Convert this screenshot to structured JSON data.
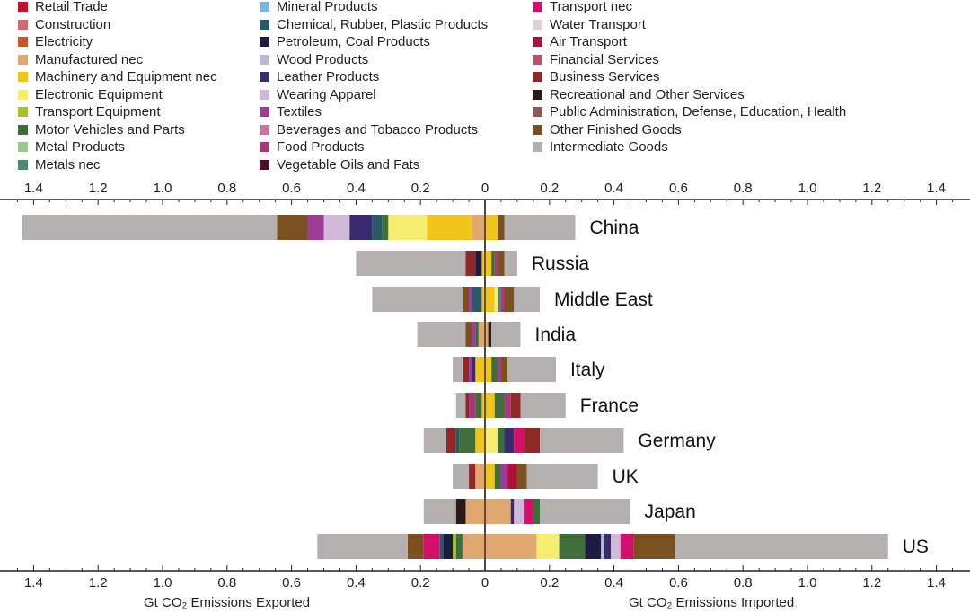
{
  "chart_data": {
    "type": "bar",
    "orientation": "horizontal-diverging-stacked",
    "xlabel_left": "Gt CO₂ Emissions Exported",
    "xlabel_right": "Gt CO₂ Emissions Imported",
    "xlim": [
      -1.45,
      1.5
    ],
    "ticks": [
      "1.4",
      "1.2",
      "1.0",
      "0.8",
      "0.6",
      "0.4",
      "0.2",
      "0",
      "0.2",
      "0.4",
      "0.6",
      "0.8",
      "1.0",
      "1.2",
      "1.4"
    ],
    "tick_values": [
      -1.4,
      -1.2,
      -1.0,
      -0.8,
      -0.6,
      -0.4,
      -0.2,
      0,
      0.2,
      0.4,
      0.6,
      0.8,
      1.0,
      1.2,
      1.4
    ],
    "legend": [
      {
        "key": "retail",
        "label": "Retail Trade",
        "color": "#c0102a"
      },
      {
        "key": "construction",
        "label": "Construction",
        "color": "#d06a70"
      },
      {
        "key": "electricity",
        "label": "Electricity",
        "color": "#c85a2a"
      },
      {
        "key": "manufactured",
        "label": "Manufactured nec",
        "color": "#e0a870"
      },
      {
        "key": "machinery",
        "label": "Machinery and Equipment nec",
        "color": "#f0c418"
      },
      {
        "key": "electronic",
        "label": "Electronic Equipment",
        "color": "#f6ec70"
      },
      {
        "key": "transport_eq",
        "label": "Transport Equipment",
        "color": "#a8c030"
      },
      {
        "key": "motor",
        "label": "Motor Vehicles and Parts",
        "color": "#3e6e3a"
      },
      {
        "key": "metal_products",
        "label": "Metal Products",
        "color": "#98c890"
      },
      {
        "key": "metals_nec",
        "label": "Metals nec",
        "color": "#4a8a70"
      },
      {
        "key": "mineral",
        "label": "Mineral Products",
        "color": "#78b8e0"
      },
      {
        "key": "chemical",
        "label": "Chemical, Rubber, Plastic Products",
        "color": "#2a5a68"
      },
      {
        "key": "petroleum",
        "label": "Petroleum, Coal Products",
        "color": "#1c1c40"
      },
      {
        "key": "wood",
        "label": "Wood Products",
        "color": "#b8b8d8"
      },
      {
        "key": "leather",
        "label": "Leather Products",
        "color": "#3a2a70"
      },
      {
        "key": "apparel",
        "label": "Wearing Apparel",
        "color": "#d0b8d8"
      },
      {
        "key": "textiles",
        "label": "Textiles",
        "color": "#a03a98"
      },
      {
        "key": "beverages",
        "label": "Beverages and Tobacco Products",
        "color": "#d070a0"
      },
      {
        "key": "food",
        "label": "Food Products",
        "color": "#a83878"
      },
      {
        "key": "vegoil",
        "label": "Vegetable Oils and Fats",
        "color": "#4a1028"
      },
      {
        "key": "transport_nec",
        "label": "Transport nec",
        "color": "#d0106a"
      },
      {
        "key": "water",
        "label": "Water Transport",
        "color": "#e0d0d8"
      },
      {
        "key": "air",
        "label": "Air Transport",
        "color": "#b01038"
      },
      {
        "key": "financial",
        "label": "Financial Services",
        "color": "#c05068"
      },
      {
        "key": "business",
        "label": "Business Services",
        "color": "#902828"
      },
      {
        "key": "recreational",
        "label": "Recreational and Other Services",
        "color": "#2a1a1a"
      },
      {
        "key": "public",
        "label": "Public Administration, Defense, Education, Health",
        "color": "#8a5a5a"
      },
      {
        "key": "other_finished",
        "label": "Other Finished Goods",
        "color": "#7a5020"
      },
      {
        "key": "intermediate",
        "label": "Intermediate Goods",
        "color": "#b4b0b0"
      }
    ],
    "countries": [
      {
        "name": "China",
        "exported": [
          [
            "manufactured",
            0.04
          ],
          [
            "machinery",
            0.14
          ],
          [
            "electronic",
            0.12
          ],
          [
            "motor",
            0.02
          ],
          [
            "chemical",
            0.03
          ],
          [
            "leather",
            0.07
          ],
          [
            "apparel",
            0.08
          ],
          [
            "textiles",
            0.05
          ],
          [
            "other_finished",
            0.095
          ],
          [
            "intermediate",
            0.79
          ]
        ],
        "imported": [
          [
            "machinery",
            0.04
          ],
          [
            "other_finished",
            0.02
          ],
          [
            "intermediate",
            0.22
          ]
        ]
      },
      {
        "name": "Russia",
        "exported": [
          [
            "machinery",
            0.01
          ],
          [
            "petroleum",
            0.02
          ],
          [
            "business",
            0.03
          ],
          [
            "intermediate",
            0.34
          ]
        ],
        "imported": [
          [
            "machinery",
            0.02
          ],
          [
            "motor",
            0.01
          ],
          [
            "food",
            0.01
          ],
          [
            "other_finished",
            0.02
          ],
          [
            "intermediate",
            0.04
          ]
        ]
      },
      {
        "name": "Middle East",
        "exported": [
          [
            "machinery",
            0.01
          ],
          [
            "chemical",
            0.03
          ],
          [
            "textiles",
            0.01
          ],
          [
            "other_finished",
            0.02
          ],
          [
            "intermediate",
            0.28
          ]
        ],
        "imported": [
          [
            "machinery",
            0.03
          ],
          [
            "electronic",
            0.01
          ],
          [
            "metals_nec",
            0.01
          ],
          [
            "food",
            0.01
          ],
          [
            "other_finished",
            0.03
          ],
          [
            "intermediate",
            0.08
          ]
        ]
      },
      {
        "name": "India",
        "exported": [
          [
            "manufactured",
            0.02
          ],
          [
            "motor",
            0.01
          ],
          [
            "textiles",
            0.01
          ],
          [
            "other_finished",
            0.02
          ],
          [
            "intermediate",
            0.15
          ]
        ],
        "imported": [
          [
            "manufactured",
            0.01
          ],
          [
            "recreational",
            0.01
          ],
          [
            "intermediate",
            0.09
          ]
        ]
      },
      {
        "name": "Italy",
        "exported": [
          [
            "machinery",
            0.03
          ],
          [
            "leather",
            0.01
          ],
          [
            "textiles",
            0.01
          ],
          [
            "business",
            0.02
          ],
          [
            "intermediate",
            0.03
          ]
        ],
        "imported": [
          [
            "machinery",
            0.02
          ],
          [
            "motor",
            0.02
          ],
          [
            "textiles",
            0.01
          ],
          [
            "other_finished",
            0.02
          ],
          [
            "intermediate",
            0.15
          ]
        ]
      },
      {
        "name": "France",
        "exported": [
          [
            "machinery",
            0.01
          ],
          [
            "motor",
            0.02
          ],
          [
            "food",
            0.02
          ],
          [
            "business",
            0.01
          ],
          [
            "intermediate",
            0.03
          ]
        ],
        "imported": [
          [
            "machinery",
            0.03
          ],
          [
            "motor",
            0.03
          ],
          [
            "food",
            0.02
          ],
          [
            "business",
            0.03
          ],
          [
            "intermediate",
            0.14
          ]
        ]
      },
      {
        "name": "Germany",
        "exported": [
          [
            "machinery",
            0.03
          ],
          [
            "motor",
            0.05
          ],
          [
            "chemical",
            0.01
          ],
          [
            "business",
            0.03
          ],
          [
            "intermediate",
            0.07
          ]
        ],
        "imported": [
          [
            "electronic",
            0.04
          ],
          [
            "motor",
            0.02
          ],
          [
            "leather",
            0.03
          ],
          [
            "transport_nec",
            0.03
          ],
          [
            "business",
            0.05
          ],
          [
            "intermediate",
            0.26
          ]
        ]
      },
      {
        "name": "UK",
        "exported": [
          [
            "manufactured",
            0.03
          ],
          [
            "business",
            0.02
          ],
          [
            "intermediate",
            0.05
          ]
        ],
        "imported": [
          [
            "machinery",
            0.03
          ],
          [
            "motor",
            0.02
          ],
          [
            "textiles",
            0.02
          ],
          [
            "air",
            0.03
          ],
          [
            "other_finished",
            0.03
          ],
          [
            "intermediate",
            0.22
          ]
        ]
      },
      {
        "name": "Japan",
        "exported": [
          [
            "manufactured",
            0.06
          ],
          [
            "recreational",
            0.03
          ],
          [
            "intermediate",
            0.1
          ]
        ],
        "imported": [
          [
            "manufactured",
            0.08
          ],
          [
            "leather",
            0.01
          ],
          [
            "apparel",
            0.03
          ],
          [
            "transport_nec",
            0.03
          ],
          [
            "motor",
            0.02
          ],
          [
            "intermediate",
            0.28
          ]
        ]
      },
      {
        "name": "US",
        "exported": [
          [
            "manufactured",
            0.07
          ],
          [
            "motor",
            0.02
          ],
          [
            "transport_eq",
            0.01
          ],
          [
            "petroleum",
            0.03
          ],
          [
            "chemical",
            0.01
          ],
          [
            "transport_nec",
            0.05
          ],
          [
            "other_finished",
            0.05
          ],
          [
            "intermediate",
            0.28
          ]
        ],
        "imported": [
          [
            "manufactured",
            0.16
          ],
          [
            "electronic",
            0.07
          ],
          [
            "motor",
            0.08
          ],
          [
            "petroleum",
            0.05
          ],
          [
            "wood",
            0.01
          ],
          [
            "leather",
            0.02
          ],
          [
            "apparel",
            0.03
          ],
          [
            "transport_nec",
            0.04
          ],
          [
            "other_finished",
            0.13
          ],
          [
            "intermediate",
            0.66
          ]
        ]
      }
    ]
  }
}
